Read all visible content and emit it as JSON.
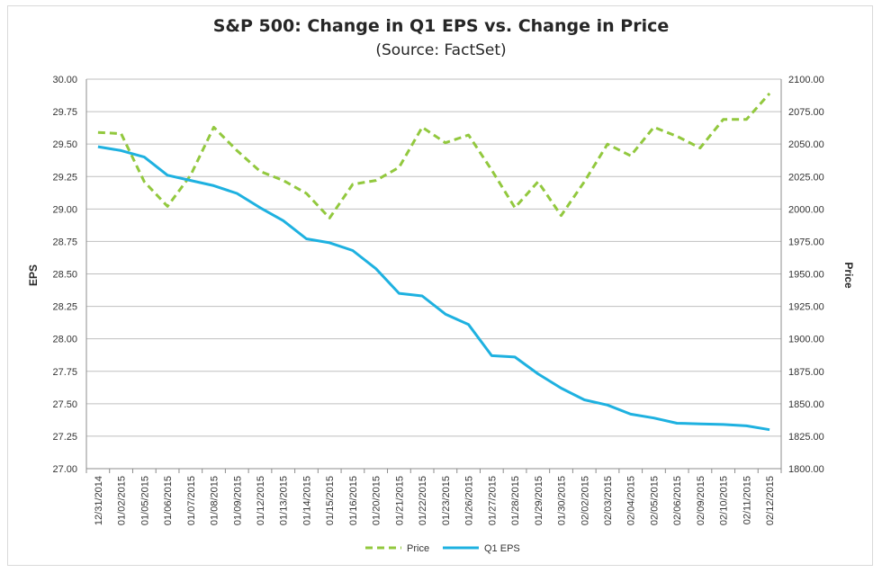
{
  "chart_data": {
    "type": "line",
    "title": "S&P 500: Change in Q1 EPS vs. Change in Price",
    "subtitle": "(Source: FactSet)",
    "ylabel_left": "EPS",
    "ylabel_right": "Price",
    "ylim_left": [
      27.0,
      30.0
    ],
    "ylim_right": [
      1800.0,
      2100.0
    ],
    "yticks_left": [
      "27.00",
      "27.25",
      "27.50",
      "27.75",
      "28.00",
      "28.25",
      "28.50",
      "28.75",
      "29.00",
      "29.25",
      "29.50",
      "29.75",
      "30.00"
    ],
    "yticks_right": [
      "1800.00",
      "1825.00",
      "1850.00",
      "1875.00",
      "1900.00",
      "1925.00",
      "1950.00",
      "1975.00",
      "2000.00",
      "2025.00",
      "2050.00",
      "2075.00",
      "2100.00"
    ],
    "categories": [
      "12/31/2014",
      "01/02/2015",
      "01/05/2015",
      "01/06/2015",
      "01/07/2015",
      "01/08/2015",
      "01/09/2015",
      "01/12/2015",
      "01/13/2015",
      "01/14/2015",
      "01/15/2015",
      "01/16/2015",
      "01/20/2015",
      "01/21/2015",
      "01/22/2015",
      "01/23/2015",
      "01/26/2015",
      "01/27/2015",
      "01/28/2015",
      "01/29/2015",
      "01/30/2015",
      "02/02/2015",
      "02/03/2015",
      "02/04/2015",
      "02/05/2015",
      "02/06/2015",
      "02/09/2015",
      "02/10/2015",
      "02/11/2015",
      "02/12/2015"
    ],
    "grid": true,
    "legend_position": "bottom",
    "series": [
      {
        "name": "Price",
        "axis": "right",
        "style": "dashed",
        "color": "#92c83e",
        "values": [
          2059,
          2058,
          2021,
          2002,
          2026,
          2063,
          2045,
          2029,
          2022,
          2012,
          1993,
          2019,
          2022,
          2032,
          2063,
          2051,
          2057,
          2030,
          2001,
          2021,
          1995,
          2021,
          2050,
          2041,
          2063,
          2056,
          2047,
          2069,
          2069,
          2089
        ]
      },
      {
        "name": "Q1 EPS",
        "axis": "left",
        "style": "solid",
        "color": "#1eb1e0",
        "values": [
          29.48,
          29.45,
          29.4,
          29.26,
          29.22,
          29.18,
          29.12,
          29.01,
          28.91,
          28.77,
          28.74,
          28.68,
          28.54,
          28.35,
          28.33,
          28.19,
          28.11,
          27.87,
          27.86,
          27.73,
          27.62,
          27.53,
          27.49,
          27.42,
          27.39,
          27.35,
          27.345,
          27.34,
          27.33,
          27.3
        ]
      }
    ]
  }
}
